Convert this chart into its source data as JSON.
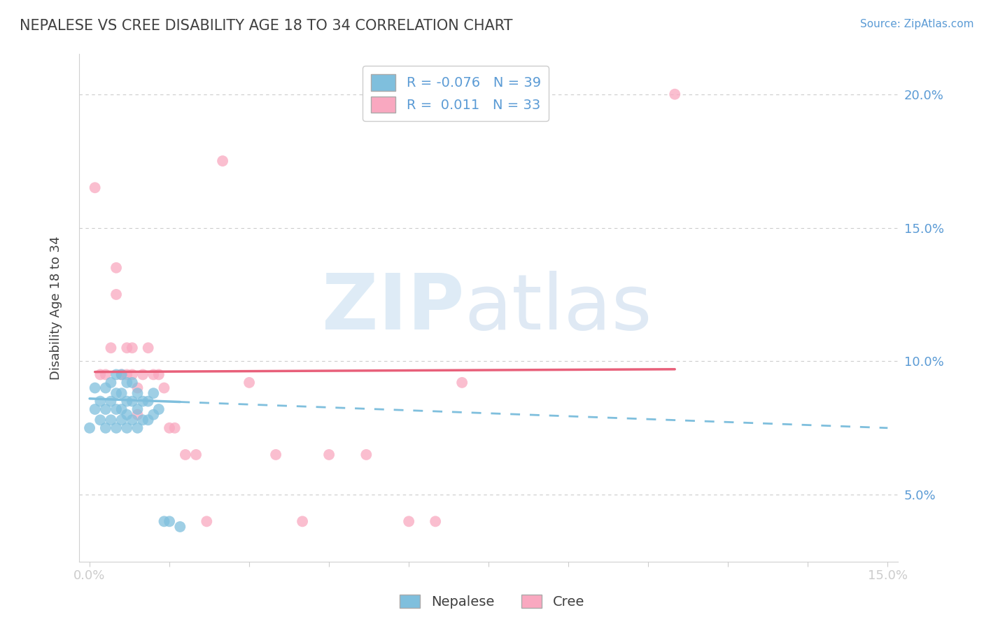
{
  "title": "NEPALESE VS CREE DISABILITY AGE 18 TO 34 CORRELATION CHART",
  "source": "Source: ZipAtlas.com",
  "ylabel": "Disability Age 18 to 34",
  "xlim": [
    -0.002,
    0.152
  ],
  "ylim": [
    0.025,
    0.215
  ],
  "xticks": [
    0.0,
    0.015,
    0.03,
    0.045,
    0.06,
    0.075,
    0.09,
    0.105,
    0.12,
    0.135,
    0.15
  ],
  "yticks": [
    0.05,
    0.1,
    0.15,
    0.2
  ],
  "nepalese_color": "#7fbfdd",
  "cree_color": "#f9a8c0",
  "nepalese_R": -0.076,
  "nepalese_N": 39,
  "cree_R": 0.011,
  "cree_N": 33,
  "background_color": "#ffffff",
  "grid_color": "#cccccc",
  "title_color": "#404040",
  "axis_color": "#5b9bd5",
  "nepalese_x": [
    0.0,
    0.001,
    0.001,
    0.002,
    0.002,
    0.003,
    0.003,
    0.003,
    0.004,
    0.004,
    0.004,
    0.005,
    0.005,
    0.005,
    0.005,
    0.006,
    0.006,
    0.006,
    0.006,
    0.007,
    0.007,
    0.007,
    0.007,
    0.008,
    0.008,
    0.008,
    0.009,
    0.009,
    0.009,
    0.01,
    0.01,
    0.011,
    0.011,
    0.012,
    0.012,
    0.013,
    0.014,
    0.015,
    0.017
  ],
  "nepalese_y": [
    0.075,
    0.082,
    0.09,
    0.078,
    0.085,
    0.075,
    0.082,
    0.09,
    0.078,
    0.085,
    0.092,
    0.075,
    0.082,
    0.088,
    0.095,
    0.078,
    0.082,
    0.088,
    0.095,
    0.075,
    0.08,
    0.085,
    0.092,
    0.078,
    0.085,
    0.092,
    0.075,
    0.082,
    0.088,
    0.078,
    0.085,
    0.078,
    0.085,
    0.08,
    0.088,
    0.082,
    0.04,
    0.04,
    0.038
  ],
  "cree_x": [
    0.001,
    0.002,
    0.003,
    0.004,
    0.005,
    0.005,
    0.006,
    0.007,
    0.007,
    0.008,
    0.008,
    0.009,
    0.009,
    0.01,
    0.011,
    0.012,
    0.013,
    0.014,
    0.015,
    0.016,
    0.018,
    0.02,
    0.022,
    0.025,
    0.03,
    0.035,
    0.04,
    0.045,
    0.052,
    0.06,
    0.065,
    0.07,
    0.11
  ],
  "cree_y": [
    0.165,
    0.095,
    0.095,
    0.105,
    0.135,
    0.125,
    0.095,
    0.095,
    0.105,
    0.095,
    0.105,
    0.08,
    0.09,
    0.095,
    0.105,
    0.095,
    0.095,
    0.09,
    0.075,
    0.075,
    0.065,
    0.065,
    0.04,
    0.175,
    0.092,
    0.065,
    0.04,
    0.065,
    0.065,
    0.04,
    0.04,
    0.092,
    0.2
  ],
  "nep_line_x0": 0.0,
  "nep_line_x_solid_end": 0.017,
  "nep_line_x1": 0.15,
  "nep_line_y0": 0.086,
  "nep_line_y1": 0.075,
  "cree_line_x0": 0.001,
  "cree_line_x1": 0.11,
  "cree_line_y0": 0.096,
  "cree_line_y1": 0.097
}
